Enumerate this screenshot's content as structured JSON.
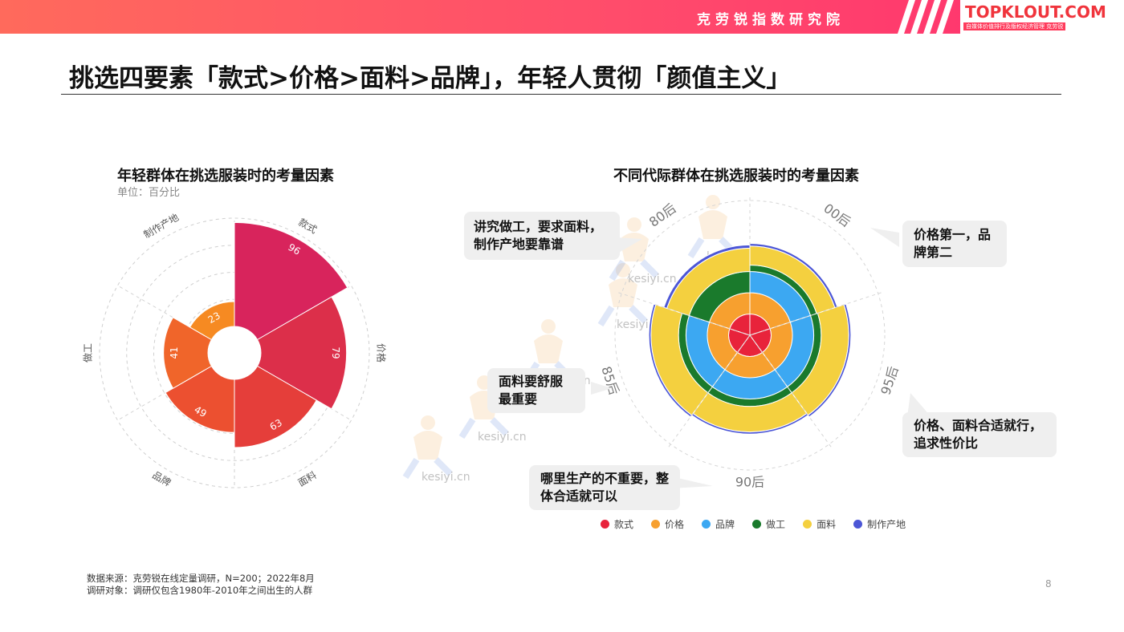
{
  "header": {
    "org": "克劳锐指数研究院",
    "logo_main": "TOPKLOUT.COM",
    "logo_sub": "自媒体价值排行及版权经济管理 克劳锐"
  },
  "title": "挑选四要素「款式>价格>面料>品牌」，年轻人贯彻「颜值主义」",
  "left_chart": {
    "title": "年轻群体在挑选服装时的考量因素",
    "unit": "单位：百分比"
  },
  "right_chart": {
    "title": "不同代际群体在挑选服装时的考量因素"
  },
  "watermark": "kesiyi.cn",
  "bubbles": {
    "b80": "讲究做工，要求面料，制作产地要靠谱",
    "b00": "价格第一，品牌第二",
    "b85": "面料要舒服最重要",
    "b95": "价格、面料合适就行，追求性价比",
    "b90": "哪里生产的不重要，整体合适就可以"
  },
  "footer": {
    "source": "数据来源：克劳锐在线定量调研，N=200；2022年8月",
    "object": "调研对象：调研仅包含1980年-2010年之间出生的人群"
  },
  "page_number": "8",
  "colors": {
    "款式": "#e8233b",
    "价格": "#f7a02f",
    "品牌": "#3ca8f2",
    "做工": "#1a7a2c",
    "面料": "#f4d03f",
    "制作产地": "#4c56d6"
  },
  "chart_data": [
    {
      "type": "bar",
      "subtype": "polar-rose",
      "title": "年轻群体在挑选服装时的考量因素",
      "unit": "单位：百分比",
      "categories": [
        "款式",
        "价格",
        "面料",
        "品牌",
        "做工",
        "制作产地"
      ],
      "values": [
        96,
        79,
        63,
        49,
        41,
        23
      ],
      "slice_colors": [
        "#d8245c",
        "#dc2f4a",
        "#e53e3a",
        "#ec5030",
        "#f0652a",
        "#f68a22"
      ]
    },
    {
      "type": "bar",
      "subtype": "polar-stacked",
      "title": "不同代际群体在挑选服装时的考量因素",
      "categories": [
        "00后",
        "95后",
        "90后",
        "85后",
        "80后"
      ],
      "series": [
        {
          "name": "款式",
          "values": [
            1,
            1,
            1,
            1,
            1
          ]
        },
        {
          "name": "价格",
          "values": [
            1,
            1,
            1,
            1,
            1
          ]
        },
        {
          "name": "品牌",
          "values": [
            1,
            1,
            1,
            1,
            0
          ]
        },
        {
          "name": "做工",
          "values": [
            0.3,
            0.35,
            0.35,
            0.35,
            1
          ]
        },
        {
          "name": "面料",
          "values": [
            0.9,
            1.3,
            1.2,
            1.3,
            1.1
          ]
        },
        {
          "name": "制作产地",
          "values": [
            0.12,
            0.1,
            0.1,
            0.1,
            0.15
          ]
        }
      ]
    }
  ]
}
